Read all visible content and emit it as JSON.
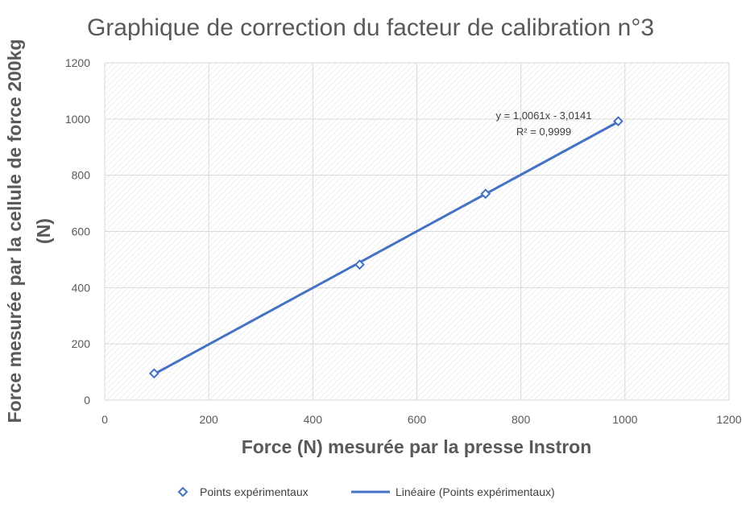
{
  "chart_data": {
    "type": "scatter",
    "title": "Graphique de correction du facteur de calibration n°3",
    "xlabel": "Force (N) mesurée par la presse Instron",
    "ylabel_lines": [
      "Force mesurée par la cellule de force 200kg",
      "(N)"
    ],
    "xlim": [
      0,
      1200
    ],
    "ylim": [
      0,
      1200
    ],
    "xticks": [
      0,
      200,
      400,
      600,
      800,
      1000,
      1200
    ],
    "yticks": [
      0,
      200,
      400,
      600,
      800,
      1000,
      1200
    ],
    "xtick_labels": [
      "0",
      "200",
      "400",
      "600",
      "800",
      "1000",
      "1200"
    ],
    "ytick_labels": [
      "0",
      "200",
      "400",
      "600",
      "800",
      "1000",
      "1200"
    ],
    "grid": true,
    "series": [
      {
        "name": "Points expérimentaux",
        "marker": "diamond-open",
        "color": "#4472C4",
        "x": [
          95,
          490,
          732,
          987
        ],
        "y": [
          95,
          482,
          734,
          992
        ]
      }
    ],
    "trendline": {
      "name": "Linéaire (Points expérimentaux)",
      "type": "linear",
      "slope": 1.0061,
      "intercept": -3.0141,
      "x_range": [
        95,
        987
      ],
      "color": "#4472C4",
      "equation_label": "y = 1,0061x - 3,0141",
      "r2_label": "R² = 0,9999"
    },
    "legend_position": "bottom",
    "colors": {
      "grid": "#D9D9D9",
      "hatch": "#E3E3E3",
      "text": "#595959",
      "series": "#4472C4"
    }
  }
}
